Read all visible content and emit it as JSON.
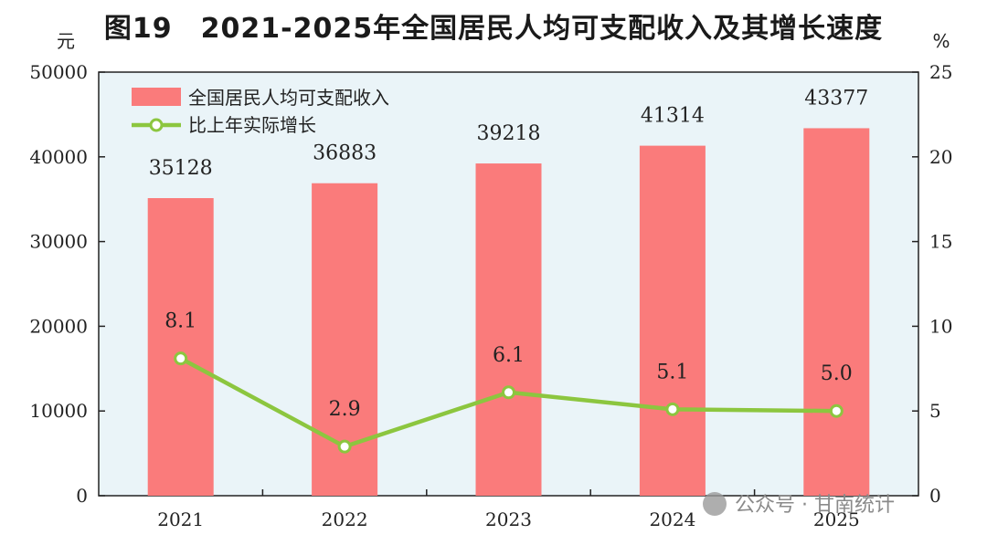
{
  "title": "图19　2021-2025年全国居民人均可支配收入及其增长速度",
  "watermark": "公众号 · 甘南统计",
  "chart_data": {
    "type": "bar+line",
    "categories": [
      "2021",
      "2022",
      "2023",
      "2024",
      "2025"
    ],
    "left_axis": {
      "unit": "元",
      "range": [
        0,
        50000
      ],
      "ticks": [
        0,
        10000,
        20000,
        30000,
        40000,
        50000
      ]
    },
    "right_axis": {
      "unit": "%",
      "range": [
        0,
        25
      ],
      "ticks": [
        0,
        5,
        10,
        15,
        20,
        25
      ]
    },
    "series": [
      {
        "name": "全国居民人均可支配收入",
        "type": "bar",
        "axis": "left",
        "values": [
          35128,
          36883,
          39218,
          41314,
          43377
        ],
        "color": "#fa7b7b"
      },
      {
        "name": "比上年实际增长",
        "type": "line",
        "axis": "right",
        "values": [
          8.1,
          2.9,
          6.1,
          5.1,
          5.0
        ],
        "labels": [
          "8.1",
          "2.9",
          "6.1",
          "5.1",
          "5.0"
        ],
        "color": "#8cc63f"
      }
    ],
    "plot_background": "#eaf4f8",
    "legend_position": "top-left",
    "grid": false
  }
}
